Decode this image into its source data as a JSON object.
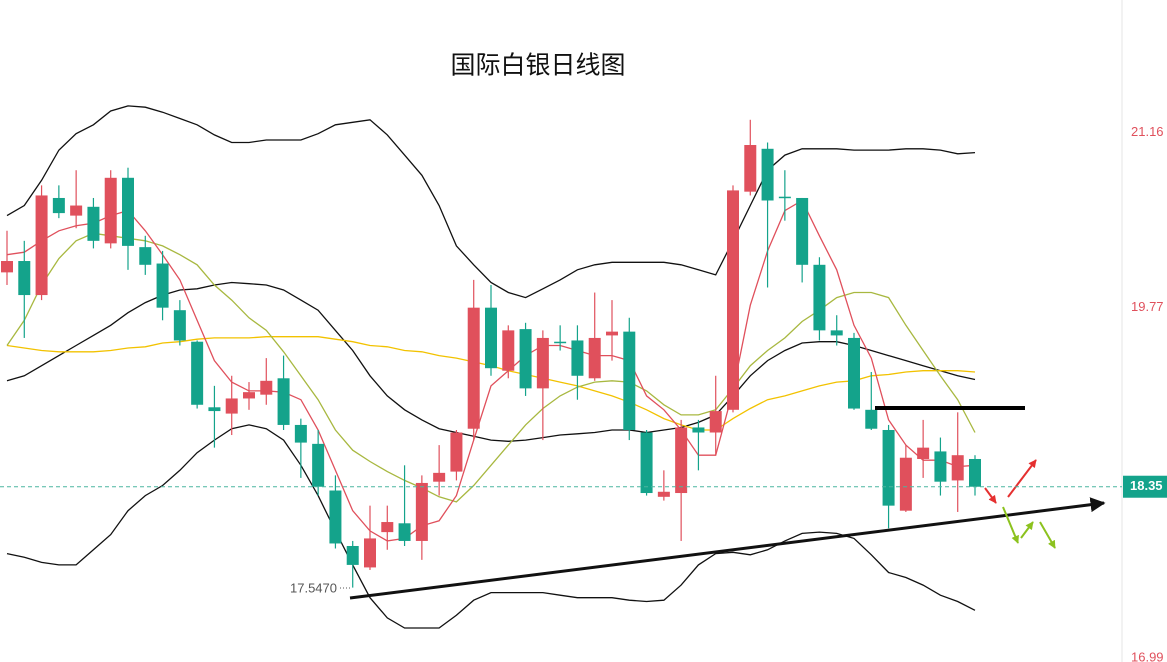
{
  "chart_data": {
    "type": "candlestick",
    "title": "国际白银日线图",
    "up_color": "#e0505c",
    "down_color": "#14a38b",
    "ylim": [
      16.96,
      22.21
    ],
    "yticks": [
      21.16,
      19.77,
      16.99
    ],
    "last_price": 18.35,
    "low_marker": {
      "value": 17.547,
      "label": "17.5470"
    },
    "open": [
      20.05,
      20.14,
      19.87,
      20.64,
      20.5,
      20.57,
      20.28,
      20.8,
      20.25,
      20.12,
      19.75,
      19.5,
      18.98,
      18.93,
      19.05,
      19.08,
      19.21,
      18.84,
      18.69,
      18.32,
      17.88,
      17.71,
      17.99,
      18.06,
      17.92,
      18.39,
      18.47,
      18.81,
      19.77,
      19.27,
      19.6,
      19.13,
      19.5,
      19.51,
      19.21,
      19.55,
      19.58,
      18.78,
      18.27,
      18.3,
      18.82,
      18.78,
      18.96,
      20.69,
      21.03,
      20.65,
      20.64,
      20.11,
      19.59,
      19.53,
      18.96,
      18.8,
      18.16,
      18.57,
      18.63,
      18.4,
      18.57
    ],
    "high": [
      20.38,
      20.3,
      20.74,
      20.74,
      20.86,
      20.64,
      20.86,
      20.88,
      20.34,
      20.22,
      19.83,
      19.51,
      19.15,
      19.23,
      19.18,
      19.37,
      19.39,
      18.89,
      18.8,
      18.44,
      17.92,
      18.2,
      18.2,
      18.52,
      18.44,
      18.68,
      18.8,
      19.99,
      19.95,
      19.63,
      19.65,
      19.59,
      19.63,
      19.63,
      19.89,
      19.83,
      19.69,
      18.8,
      18.48,
      18.88,
      18.88,
      19.23,
      20.74,
      21.26,
      21.08,
      20.86,
      20.64,
      20.17,
      19.71,
      19.57,
      19.26,
      18.84,
      18.68,
      18.88,
      18.74,
      18.94,
      18.6
    ],
    "low": [
      19.95,
      19.53,
      19.83,
      20.48,
      20.4,
      20.24,
      20.24,
      20.07,
      20.03,
      19.67,
      19.47,
      18.97,
      18.66,
      18.76,
      18.96,
      19.0,
      18.8,
      18.42,
      18.28,
      17.86,
      17.55,
      17.69,
      17.85,
      17.88,
      17.77,
      18.28,
      18.4,
      18.72,
      19.23,
      19.21,
      19.07,
      18.72,
      19.43,
      19.04,
      19.19,
      19.35,
      18.72,
      18.28,
      18.24,
      17.92,
      18.48,
      18.6,
      18.94,
      20.66,
      19.93,
      20.46,
      19.97,
      19.51,
      19.47,
      18.96,
      18.8,
      18.02,
      18.15,
      18.42,
      18.28,
      18.15,
      18.28
    ],
    "close": [
      20.14,
      19.87,
      20.66,
      20.52,
      20.58,
      20.3,
      20.8,
      20.26,
      20.11,
      19.77,
      19.51,
      19.0,
      18.95,
      19.05,
      19.1,
      19.19,
      18.84,
      18.7,
      18.35,
      17.9,
      17.73,
      17.94,
      18.07,
      17.92,
      18.38,
      18.46,
      18.78,
      19.77,
      19.29,
      19.59,
      19.13,
      19.53,
      19.49,
      19.23,
      19.53,
      19.58,
      18.8,
      18.3,
      18.31,
      18.82,
      18.78,
      18.95,
      20.7,
      21.06,
      20.62,
      20.64,
      20.11,
      19.59,
      19.55,
      18.97,
      18.81,
      18.2,
      18.58,
      18.66,
      18.39,
      18.6,
      18.35
    ],
    "overlays": [
      {
        "color": "#111111",
        "values": [
          20.5,
          20.58,
          20.78,
          21.02,
          21.15,
          21.22,
          21.33,
          21.37,
          21.36,
          21.32,
          21.27,
          21.22,
          21.14,
          21.08,
          21.08,
          21.1,
          21.1,
          21.1,
          21.15,
          21.22,
          21.24,
          21.26,
          21.14,
          20.98,
          20.82,
          20.58,
          20.26,
          20.11,
          19.97,
          19.89,
          19.85,
          19.92,
          19.99,
          20.07,
          20.11,
          20.13,
          20.13,
          20.13,
          20.13,
          20.11,
          20.07,
          20.03,
          20.3,
          20.58,
          20.86,
          20.98,
          21.03,
          21.03,
          21.03,
          21.02,
          21.02,
          21.02,
          21.03,
          21.03,
          21.02,
          20.99,
          21.0
        ]
      },
      {
        "color": "#111111",
        "values": [
          19.19,
          19.23,
          19.31,
          19.39,
          19.47,
          19.55,
          19.63,
          19.73,
          19.81,
          19.87,
          19.91,
          19.92,
          19.95,
          19.97,
          19.96,
          19.95,
          19.91,
          19.83,
          19.75,
          19.59,
          19.43,
          19.23,
          19.07,
          18.96,
          18.88,
          18.81,
          18.78,
          18.75,
          18.72,
          18.71,
          18.72,
          18.74,
          18.76,
          18.77,
          18.78,
          18.8,
          18.8,
          18.78,
          18.8,
          18.82,
          18.86,
          18.92,
          19.07,
          19.23,
          19.35,
          19.43,
          19.49,
          19.5,
          19.5,
          19.47,
          19.43,
          19.39,
          19.35,
          19.31,
          19.27,
          19.23,
          19.2
        ]
      },
      {
        "color": "#111111",
        "values": [
          17.82,
          17.79,
          17.75,
          17.73,
          17.73,
          17.85,
          17.97,
          18.16,
          18.28,
          18.36,
          18.48,
          18.62,
          18.72,
          18.81,
          18.84,
          18.81,
          18.72,
          18.52,
          18.28,
          18.0,
          17.73,
          17.47,
          17.31,
          17.23,
          17.23,
          17.23,
          17.33,
          17.45,
          17.51,
          17.51,
          17.51,
          17.51,
          17.49,
          17.47,
          17.47,
          17.47,
          17.45,
          17.44,
          17.45,
          17.57,
          17.73,
          17.82,
          17.83,
          17.81,
          17.85,
          17.92,
          17.98,
          17.99,
          17.98,
          17.94,
          17.81,
          17.67,
          17.63,
          17.57,
          17.49,
          17.44,
          17.37
        ]
      },
      {
        "color": "#f2c200",
        "values": [
          19.47,
          19.45,
          19.43,
          19.42,
          19.42,
          19.42,
          19.43,
          19.45,
          19.46,
          19.49,
          19.5,
          19.52,
          19.53,
          19.53,
          19.53,
          19.54,
          19.54,
          19.54,
          19.54,
          19.52,
          19.5,
          19.47,
          19.46,
          19.43,
          19.42,
          19.39,
          19.37,
          19.34,
          19.31,
          19.27,
          19.24,
          19.21,
          19.18,
          19.15,
          19.11,
          19.07,
          19.02,
          18.96,
          18.89,
          18.84,
          18.8,
          18.8,
          18.89,
          18.97,
          19.04,
          19.07,
          19.11,
          19.15,
          19.18,
          19.19,
          19.23,
          19.24,
          19.26,
          19.27,
          19.27,
          19.27,
          19.26
        ]
      },
      {
        "color": "#a8b840",
        "values": [
          19.47,
          19.67,
          19.95,
          20.16,
          20.3,
          20.36,
          20.34,
          20.32,
          20.3,
          20.26,
          20.19,
          20.11,
          19.95,
          19.83,
          19.69,
          19.59,
          19.42,
          19.23,
          19.04,
          18.8,
          18.64,
          18.55,
          18.47,
          18.4,
          18.34,
          18.27,
          18.23,
          18.36,
          18.52,
          18.68,
          18.84,
          18.97,
          19.07,
          19.14,
          19.18,
          19.19,
          19.18,
          19.11,
          19.0,
          18.92,
          18.92,
          18.96,
          19.13,
          19.31,
          19.43,
          19.53,
          19.66,
          19.75,
          19.85,
          19.89,
          19.89,
          19.85,
          19.63,
          19.43,
          19.23,
          19.04,
          18.78
        ]
      },
      {
        "color": "#e0505c",
        "values": [
          20.19,
          20.21,
          20.3,
          20.38,
          20.42,
          20.44,
          20.5,
          20.54,
          20.38,
          20.19,
          19.99,
          19.67,
          19.35,
          19.18,
          19.11,
          19.11,
          19.1,
          19.04,
          18.8,
          18.48,
          18.16,
          18.0,
          17.92,
          17.94,
          18.04,
          18.08,
          18.28,
          18.72,
          19.15,
          19.27,
          19.39,
          19.47,
          19.47,
          19.43,
          19.39,
          19.39,
          19.35,
          19.07,
          18.96,
          18.8,
          18.6,
          18.6,
          19.11,
          19.79,
          20.22,
          20.54,
          20.62,
          20.34,
          20.07,
          19.63,
          19.37,
          18.88,
          18.68,
          18.56,
          18.56,
          18.51,
          18.52
        ]
      }
    ]
  }
}
